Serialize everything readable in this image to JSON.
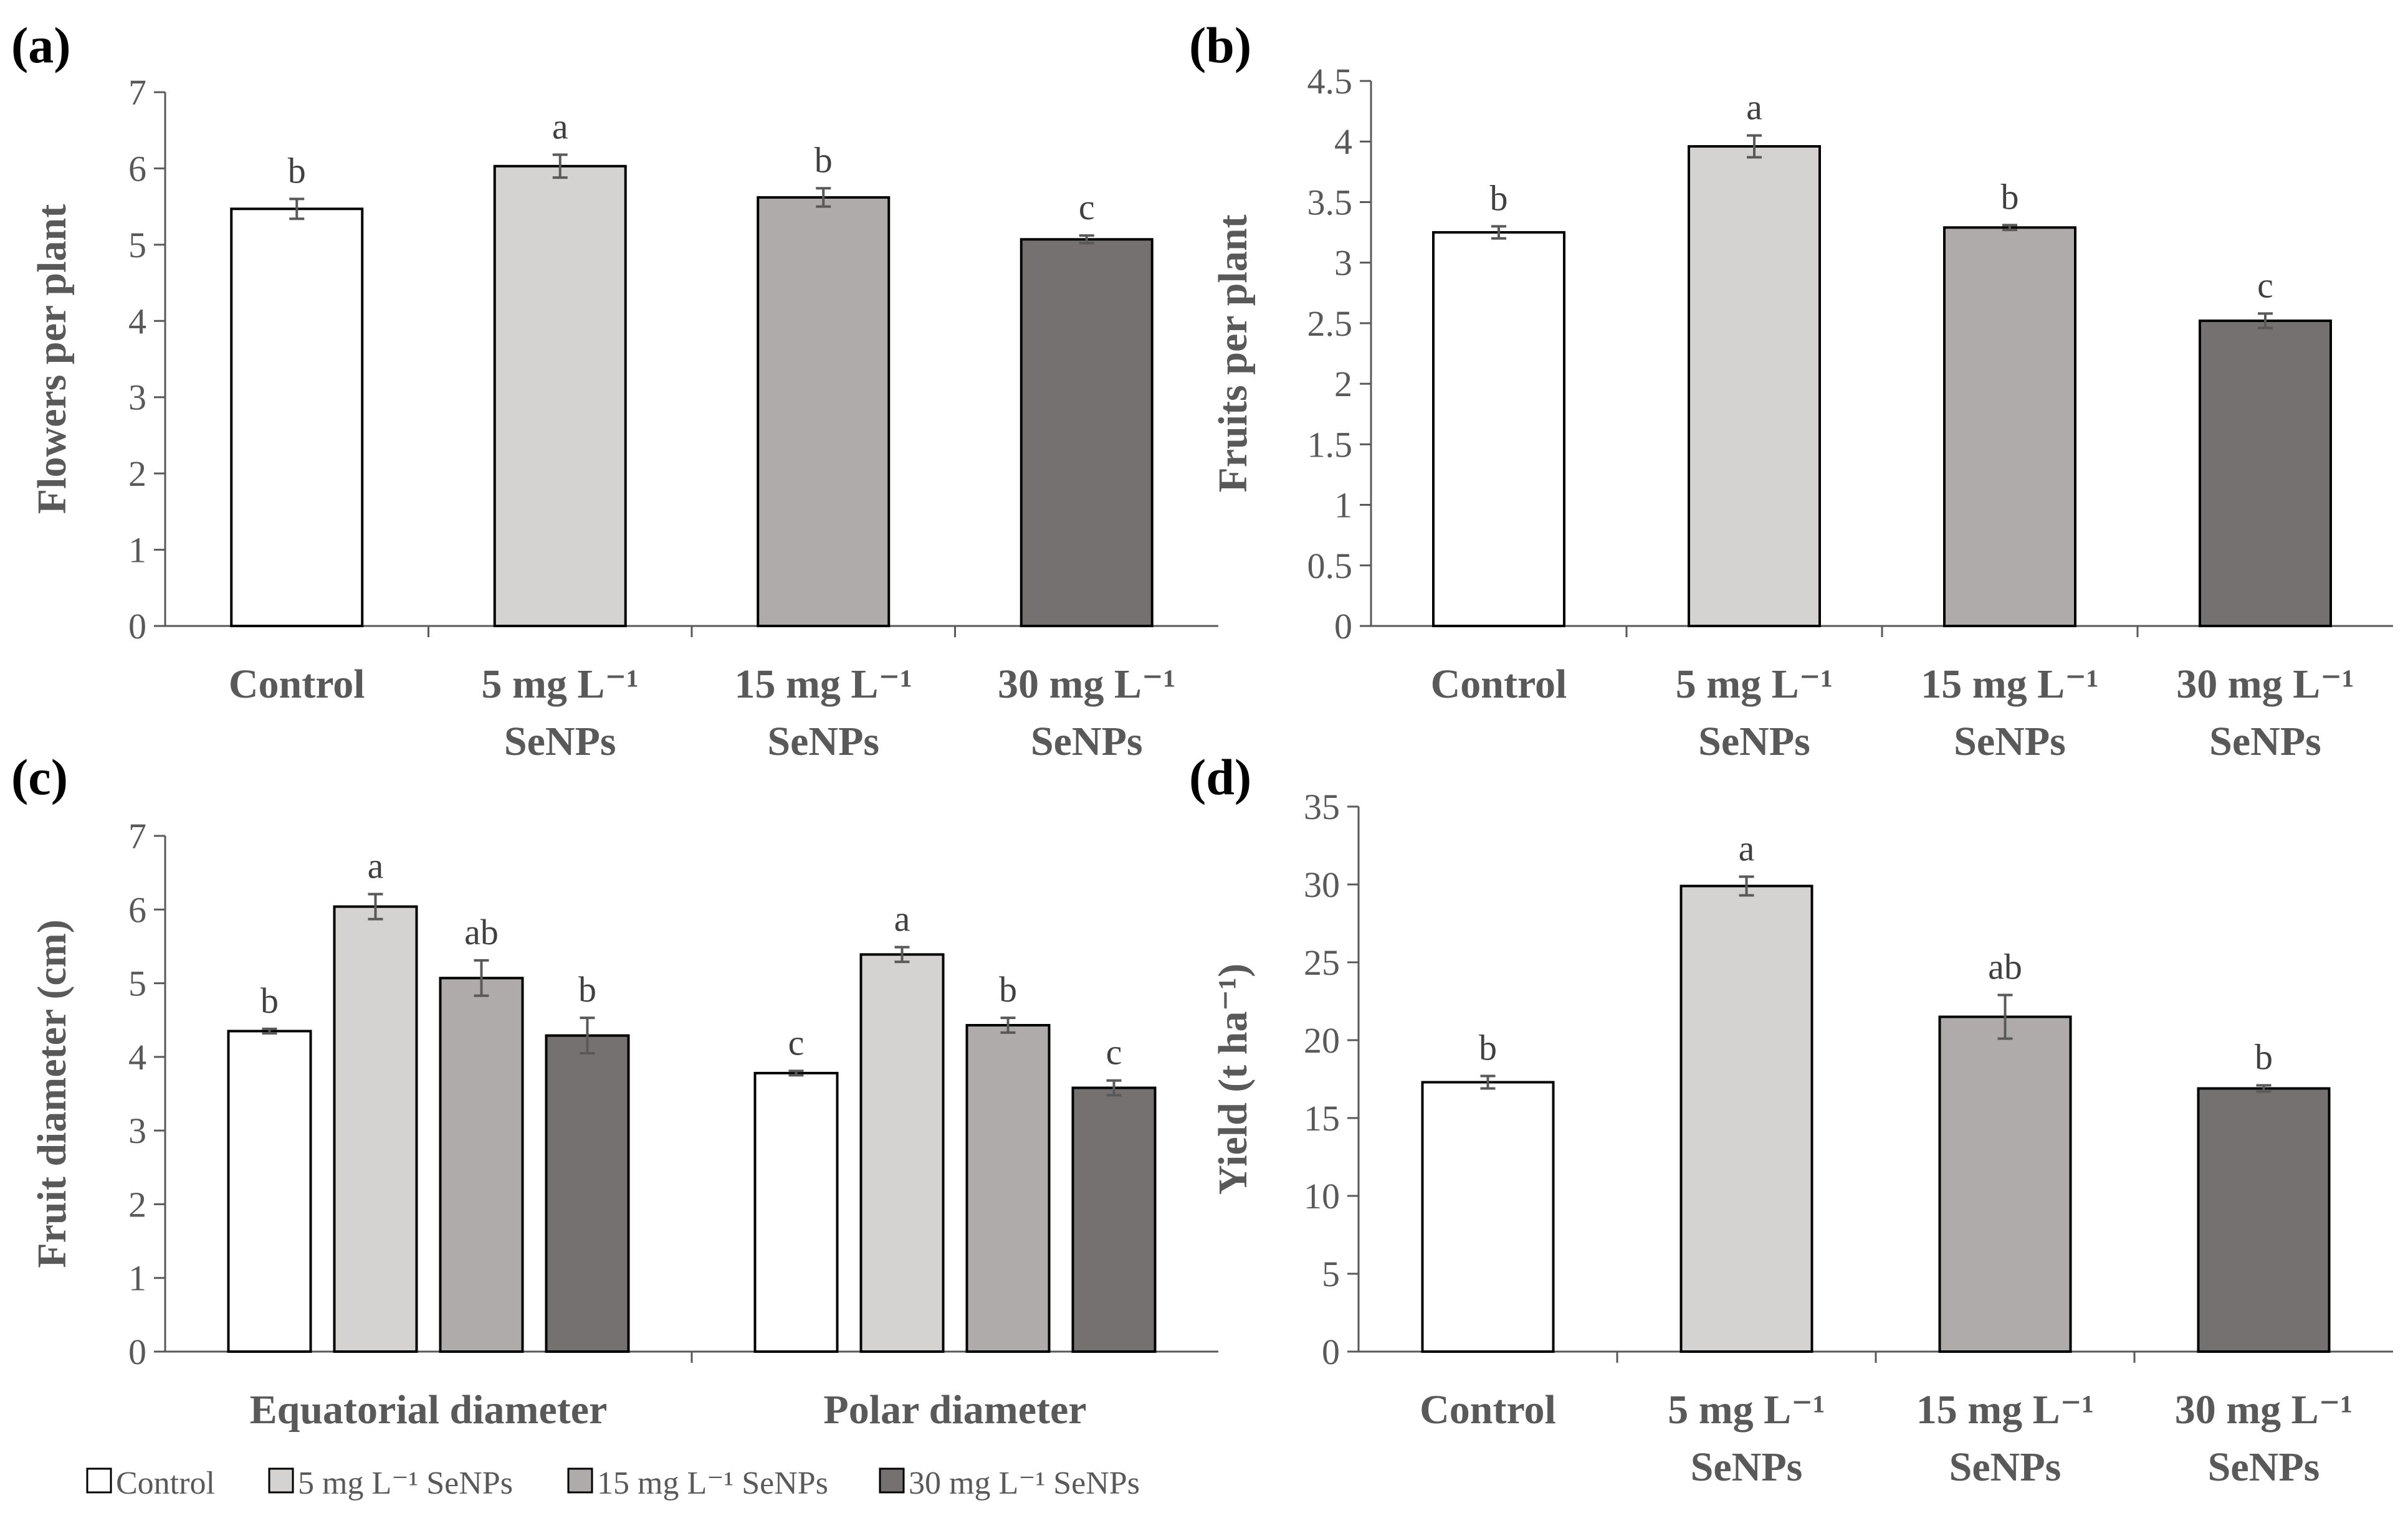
{
  "legend": {
    "items": [
      {
        "label": "Control",
        "color": "#ffffff"
      },
      {
        "label": "5 mg L⁻¹ SeNPs",
        "color": "#d4d3d2"
      },
      {
        "label": "15 mg L⁻¹ SeNPs",
        "color": "#afabaa"
      },
      {
        "label": "30 mg L⁻¹ SeNPs",
        "color": "#767171"
      }
    ]
  },
  "chart_data": [
    {
      "panel": "(a)",
      "type": "bar",
      "ylabel": "Flowers per plant",
      "ylim": [
        0,
        7
      ],
      "yticks": [
        "0",
        "1",
        "2",
        "3",
        "4",
        "5",
        "6",
        "7"
      ],
      "categories": [
        [
          "Control"
        ],
        [
          "5 mg L⁻¹",
          "SeNPs"
        ],
        [
          "15 mg L⁻¹",
          "SeNPs"
        ],
        [
          "30 mg L⁻¹",
          "SeNPs"
        ]
      ],
      "values": [
        5.47,
        6.03,
        5.62,
        5.07
      ],
      "errors": [
        0.13,
        0.15,
        0.12,
        0.05
      ],
      "letters": [
        "b",
        "a",
        "b",
        "c"
      ],
      "colors": [
        "#ffffff",
        "#d4d3d2",
        "#afabaa",
        "#767171"
      ]
    },
    {
      "panel": "(b)",
      "type": "bar",
      "ylabel": "Fruits per plant",
      "ylim": [
        0,
        4.5
      ],
      "yticks": [
        "0",
        "0.5",
        "1",
        "1.5",
        "2",
        "2.5",
        "3",
        "3.5",
        "4",
        "4.5"
      ],
      "categories": [
        [
          "Control"
        ],
        [
          "5 mg L⁻¹",
          "SeNPs"
        ],
        [
          "15 mg L⁻¹",
          "SeNPs"
        ],
        [
          "30 mg L⁻¹",
          "SeNPs"
        ]
      ],
      "values": [
        3.25,
        3.96,
        3.29,
        2.52
      ],
      "errors": [
        0.05,
        0.09,
        0.02,
        0.06
      ],
      "letters": [
        "b",
        "a",
        "b",
        "c"
      ],
      "colors": [
        "#ffffff",
        "#d4d3d2",
        "#afabaa",
        "#767171"
      ]
    },
    {
      "panel": "(c)",
      "type": "bar",
      "ylabel": "Fruit diameter (cm)",
      "ylim": [
        0,
        7
      ],
      "yticks": [
        "0",
        "1",
        "2",
        "3",
        "4",
        "5",
        "6",
        "7"
      ],
      "categories": [
        [
          "Equatorial diameter"
        ],
        [
          "Polar diameter"
        ]
      ],
      "series": [
        {
          "name": "Control",
          "color": "#ffffff",
          "values": [
            4.35,
            3.78
          ],
          "errors": [
            0.03,
            0.03
          ],
          "letters": [
            "b",
            "c"
          ]
        },
        {
          "name": "5 mg L⁻¹ SeNPs",
          "color": "#d4d3d2",
          "values": [
            6.04,
            5.39
          ],
          "errors": [
            0.17,
            0.1
          ],
          "letters": [
            "a",
            "a"
          ]
        },
        {
          "name": "15 mg L⁻¹ SeNPs",
          "color": "#afabaa",
          "values": [
            5.07,
            4.43
          ],
          "errors": [
            0.24,
            0.1
          ],
          "letters": [
            "ab",
            "b"
          ]
        },
        {
          "name": "30 mg L⁻¹ SeNPs",
          "color": "#767171",
          "values": [
            4.29,
            3.58
          ],
          "errors": [
            0.24,
            0.1
          ],
          "letters": [
            "b",
            "c"
          ]
        }
      ]
    },
    {
      "panel": "(d)",
      "type": "bar",
      "ylabel": "Yield (t ha⁻¹)",
      "ylim": [
        0,
        35
      ],
      "yticks": [
        "0",
        "5",
        "10",
        "15",
        "20",
        "25",
        "30",
        "35"
      ],
      "categories": [
        [
          "Control"
        ],
        [
          "5 mg L⁻¹",
          "SeNPs"
        ],
        [
          "15 mg L⁻¹",
          "SeNPs"
        ],
        [
          "30 mg L⁻¹",
          "SeNPs"
        ]
      ],
      "values": [
        17.3,
        29.9,
        21.5,
        16.9
      ],
      "errors": [
        0.4,
        0.6,
        1.4,
        0.2
      ],
      "letters": [
        "b",
        "a",
        "ab",
        "b"
      ],
      "colors": [
        "#ffffff",
        "#d4d3d2",
        "#afabaa",
        "#767171"
      ]
    }
  ]
}
